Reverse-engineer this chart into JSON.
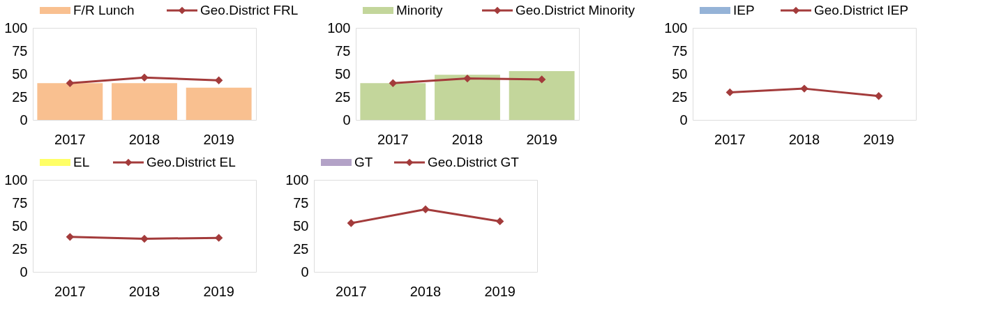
{
  "chart_data": [
    {
      "type": "bar",
      "categories": [
        "2017",
        "2018",
        "2019"
      ],
      "ylim": [
        0,
        100
      ],
      "yticks": [
        0,
        25,
        50,
        75,
        100
      ],
      "grid": false,
      "legend": "top",
      "marker": "diamond",
      "series": [
        {
          "name": "F/R Lunch",
          "color": "#f9c090",
          "values": [
            40,
            40,
            35
          ]
        },
        {
          "name": "Geo.District FRL",
          "type": "line",
          "color": "#a33b3b",
          "values": [
            40,
            46,
            43
          ]
        }
      ]
    },
    {
      "type": "bar",
      "categories": [
        "2017",
        "2018",
        "2019"
      ],
      "ylim": [
        0,
        100
      ],
      "yticks": [
        0,
        25,
        50,
        75,
        100
      ],
      "grid": false,
      "legend": "top",
      "marker": "diamond",
      "series": [
        {
          "name": "Minority",
          "color": "#c3d69b",
          "values": [
            40,
            49,
            53
          ]
        },
        {
          "name": "Geo.District Minority",
          "type": "line",
          "color": "#a33b3b",
          "values": [
            40,
            45,
            44
          ]
        }
      ]
    },
    {
      "type": "bar",
      "categories": [
        "2017",
        "2018",
        "2019"
      ],
      "ylim": [
        0,
        100
      ],
      "yticks": [
        0,
        25,
        50,
        75,
        100
      ],
      "grid": false,
      "legend": "top",
      "marker": "diamond",
      "series": [
        {
          "name": "IEP",
          "color": "#95b3d7",
          "values": [
            null,
            null,
            null
          ]
        },
        {
          "name": "Geo.District IEP",
          "type": "line",
          "color": "#a33b3b",
          "values": [
            30,
            34,
            26
          ]
        }
      ]
    },
    {
      "type": "bar",
      "categories": [
        "2017",
        "2018",
        "2019"
      ],
      "ylim": [
        0,
        100
      ],
      "yticks": [
        0,
        25,
        50,
        75,
        100
      ],
      "grid": false,
      "legend": "top",
      "marker": "diamond",
      "series": [
        {
          "name": "EL",
          "color": "#ffff66",
          "values": [
            null,
            null,
            null
          ]
        },
        {
          "name": "Geo.District EL",
          "type": "line",
          "color": "#a33b3b",
          "values": [
            38,
            36,
            37
          ]
        }
      ]
    },
    {
      "type": "bar",
      "categories": [
        "2017",
        "2018",
        "2019"
      ],
      "ylim": [
        0,
        100
      ],
      "yticks": [
        0,
        25,
        50,
        75,
        100
      ],
      "grid": false,
      "legend": "top",
      "marker": "diamond",
      "series": [
        {
          "name": "GT",
          "color": "#b3a2c7",
          "values": [
            null,
            null,
            null
          ]
        },
        {
          "name": "Geo.District GT",
          "type": "line",
          "color": "#a33b3b",
          "values": [
            53,
            68,
            55
          ]
        }
      ]
    }
  ]
}
